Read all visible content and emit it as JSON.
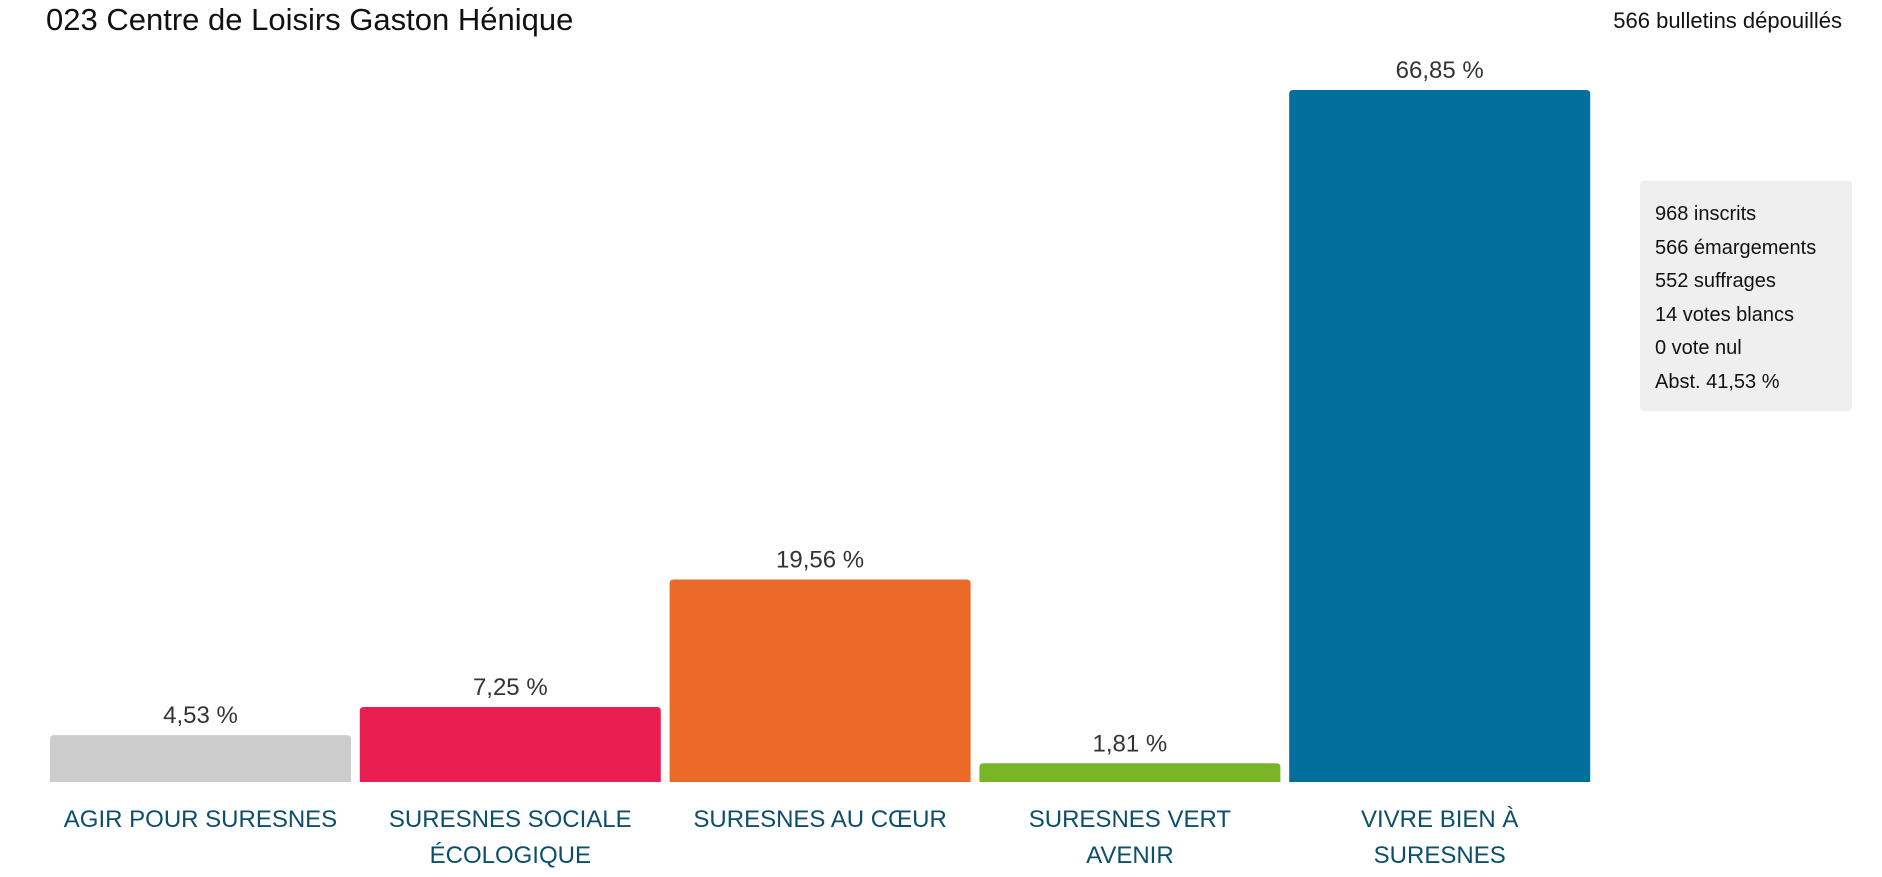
{
  "header": {
    "title": "023 Centre de Loisirs Gaston Hénique",
    "ballots_counted": "566 bulletins dépouillés"
  },
  "stats": [
    "968 inscrits",
    "566 émargements",
    "552 suffrages",
    "14 votes blancs",
    "0 vote nul",
    "Abst. 41,53 %"
  ],
  "chart_data": {
    "type": "bar",
    "title": "023 Centre de Loisirs Gaston Hénique",
    "xlabel": "",
    "ylabel": "",
    "ylim": [
      0,
      66.85
    ],
    "grid": false,
    "categories": [
      [
        "AGIR POUR SURESNES"
      ],
      [
        "SURESNES SOCIALE",
        "ÉCOLOGIQUE"
      ],
      [
        "SURESNES AU CŒUR"
      ],
      [
        "SURESNES VERT",
        "AVENIR"
      ],
      [
        "VIVRE BIEN À",
        "SURESNES"
      ]
    ],
    "values": [
      4.53,
      7.25,
      19.56,
      1.81,
      66.85
    ],
    "value_labels": [
      "4,53 %",
      "7,25 %",
      "19,56 %",
      "1,81 %",
      "66,85 %"
    ],
    "colors": [
      "#cccccc",
      "#ea1f51",
      "#ec6a29",
      "#7ab527",
      "#026e9b"
    ],
    "label_color": "#0c4f6a"
  }
}
